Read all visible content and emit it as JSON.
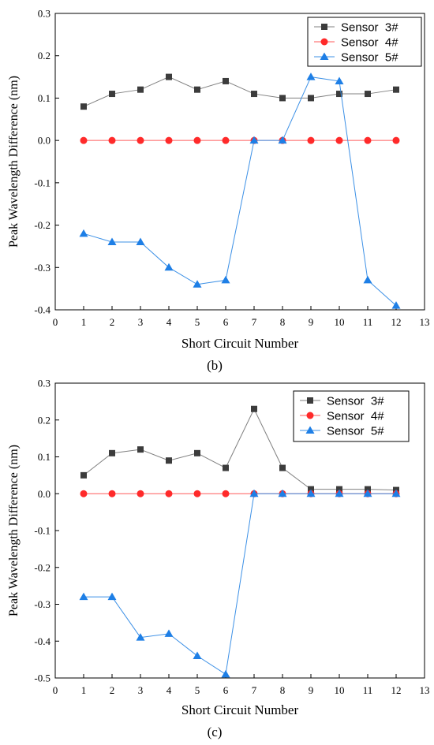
{
  "chart_data": [
    {
      "type": "line",
      "panel_label": "(b)",
      "xlabel": "Short Circuit Number",
      "ylabel": "Peak Wavelength Difference (nm)",
      "xlim": [
        0,
        13
      ],
      "ylim": [
        -0.4,
        0.3
      ],
      "xticks": [
        0,
        1,
        2,
        3,
        4,
        5,
        6,
        7,
        8,
        9,
        10,
        11,
        12,
        13
      ],
      "yticks": [
        -0.4,
        -0.3,
        -0.2,
        -0.1,
        0.0,
        0.1,
        0.2,
        0.3
      ],
      "ytick_labels": [
        "-0.4",
        "-0.3",
        "-0.2",
        "-0.1",
        "0.0",
        "0.1",
        "0.2",
        "0.3"
      ],
      "legend_position": "top-right",
      "grid": false,
      "x": [
        1,
        2,
        3,
        4,
        5,
        6,
        7,
        8,
        9,
        10,
        11,
        12
      ],
      "series": [
        {
          "name": "Sensor  3#",
          "marker": "square",
          "color": "#3c3c3c",
          "line_color": "#808080",
          "values": [
            0.08,
            0.11,
            0.12,
            0.15,
            0.12,
            0.14,
            0.11,
            0.1,
            0.1,
            0.11,
            0.11,
            0.12
          ]
        },
        {
          "name": "Sensor  4#",
          "marker": "circle",
          "color": "#ff2a2a",
          "line_color": "#ff5a5a",
          "values": [
            0,
            0,
            0,
            0,
            0,
            0,
            0,
            0,
            0,
            0,
            0,
            0
          ]
        },
        {
          "name": "Sensor  5#",
          "marker": "triangle",
          "color": "#1e7fe6",
          "line_color": "#3c90e6",
          "values": [
            -0.22,
            -0.24,
            -0.24,
            -0.3,
            -0.34,
            -0.33,
            0.0,
            0.0,
            0.15,
            0.14,
            -0.33,
            -0.39
          ]
        }
      ]
    },
    {
      "type": "line",
      "panel_label": "(c)",
      "xlabel": "Short Circuit Number",
      "ylabel": "Peak Wavelength Difference (nm)",
      "xlim": [
        0,
        13
      ],
      "ylim": [
        -0.5,
        0.3
      ],
      "xticks": [
        0,
        1,
        2,
        3,
        4,
        5,
        6,
        7,
        8,
        9,
        10,
        11,
        12,
        13
      ],
      "yticks": [
        -0.5,
        -0.4,
        -0.3,
        -0.2,
        -0.1,
        0.0,
        0.1,
        0.2,
        0.3
      ],
      "ytick_labels": [
        "-0.5",
        "-0.4",
        "-0.3",
        "-0.2",
        "-0.1",
        "0.0",
        "0.1",
        "0.2",
        "0.3"
      ],
      "legend_position": "top-right",
      "grid": false,
      "x": [
        1,
        2,
        3,
        4,
        5,
        6,
        7,
        8,
        9,
        10,
        11,
        12
      ],
      "series": [
        {
          "name": "Sensor  3#",
          "marker": "square",
          "color": "#3c3c3c",
          "line_color": "#808080",
          "values": [
            0.05,
            0.11,
            0.12,
            0.09,
            0.11,
            0.07,
            0.23,
            0.07,
            0.012,
            0.012,
            0.012,
            0.01
          ]
        },
        {
          "name": "Sensor  4#",
          "marker": "circle",
          "color": "#ff2a2a",
          "line_color": "#ff5a5a",
          "values": [
            0,
            0,
            0,
            0,
            0,
            0,
            0,
            0,
            0,
            0,
            0,
            0
          ]
        },
        {
          "name": "Sensor  5#",
          "marker": "triangle",
          "color": "#1e7fe6",
          "line_color": "#3c90e6",
          "values": [
            -0.28,
            -0.28,
            -0.39,
            -0.38,
            -0.44,
            -0.49,
            0.0,
            0.0,
            0.0,
            0.0,
            0.0,
            0.0
          ]
        }
      ]
    }
  ]
}
